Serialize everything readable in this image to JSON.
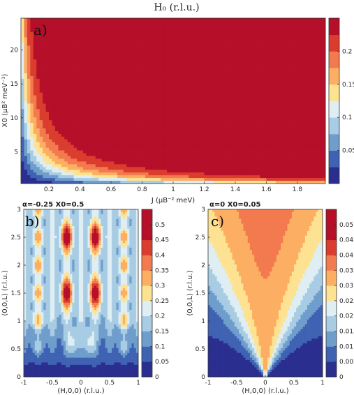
{
  "figure_title": "H₀ (r.l.u.)",
  "colorscale": [
    "#2a2f8f",
    "#3f62b3",
    "#6f9dcc",
    "#a8cce3",
    "#deeef3",
    "#fde292",
    "#fcae63",
    "#f27a4e",
    "#da3d2e",
    "#b50f2a"
  ],
  "chart_data": [
    {
      "type": "heatmap",
      "panel_label": "a)",
      "title": "",
      "xlabel": "J (μB⁻² meV)",
      "ylabel": "X0 (μB² meV⁻¹)",
      "xlim": [
        0.02,
        1.98
      ],
      "ylim": [
        0.3,
        24.7
      ],
      "xticks": [
        "0.2",
        "0.4",
        "0.6",
        "0.8",
        "1",
        "1.2",
        "1.4",
        "1.6",
        "1.8"
      ],
      "xtick_values": [
        0.2,
        0.4,
        0.6,
        0.8,
        1.0,
        1.2,
        1.4,
        1.6,
        1.8
      ],
      "yticks": [
        "5",
        "10",
        "15",
        "20"
      ],
      "ytick_values": [
        5,
        10,
        15,
        20
      ],
      "colorbar": {
        "ticks": [
          "0.05",
          "0.1",
          "0.15",
          "0.2"
        ],
        "tick_values": [
          0.05,
          0.1,
          0.15,
          0.2
        ],
        "levels": [
          0,
          0.025,
          0.05,
          0.075,
          0.1,
          0.125,
          0.15,
          0.175,
          0.2,
          0.225,
          0.25
        ]
      }
    },
    {
      "type": "heatmap",
      "panel_label": "b)",
      "title": "α=-0.25  X0=0.5",
      "xlabel": "(H,0,0) (r.l.u.)",
      "ylabel": "(0,0,L) (r.l.u.)",
      "xlim": [
        -1,
        1
      ],
      "ylim": [
        0,
        3
      ],
      "xticks": [
        "-1",
        "-0.5",
        "0",
        "0.5",
        "1"
      ],
      "xtick_values": [
        -1,
        -0.5,
        0,
        0.5,
        1
      ],
      "yticks": [
        "0",
        "0.5",
        "1",
        "1.5",
        "2",
        "2.5",
        "3"
      ],
      "ytick_values": [
        0,
        0.5,
        1,
        1.5,
        2,
        2.5,
        3
      ],
      "peaks": [
        {
          "h": -0.25,
          "l": 1.5,
          "value": 0.52
        },
        {
          "h": 0.25,
          "l": 1.5,
          "value": 0.52
        },
        {
          "h": -0.25,
          "l": 2.5,
          "value": 0.52
        },
        {
          "h": 0.25,
          "l": 2.5,
          "value": 0.52
        },
        {
          "h": -0.15,
          "l": 0.6,
          "value": 0.32
        },
        {
          "h": 0.15,
          "l": 0.6,
          "value": 0.32
        }
      ],
      "colorbar": {
        "ticks": [
          "0",
          "0.05",
          "0.1",
          "0.15",
          "0.2",
          "0.25",
          "0.3",
          "0.35",
          "0.4",
          "0.45",
          "0.5"
        ],
        "tick_values": [
          0,
          0.05,
          0.1,
          0.15,
          0.2,
          0.25,
          0.3,
          0.35,
          0.4,
          0.45,
          0.5
        ],
        "levels": [
          0,
          0.05,
          0.1,
          0.15,
          0.2,
          0.25,
          0.3,
          0.35,
          0.4,
          0.45,
          0.5,
          0.55
        ]
      }
    },
    {
      "type": "heatmap",
      "panel_label": "c)",
      "title": "α=0  X0=0.05",
      "xlabel": "(H,0,0) (r.l.u.)",
      "ylabel": "(0,0,L) (r.l.u.)",
      "xlim": [
        -1,
        1
      ],
      "ylim": [
        0,
        3
      ],
      "xticks": [
        "-1",
        "-0.5",
        "0",
        "0.5",
        "1"
      ],
      "xtick_values": [
        -1,
        -0.5,
        0,
        0.5,
        1
      ],
      "yticks": [
        "0",
        "0.5",
        "1",
        "1.5",
        "2",
        "2.5",
        "3"
      ],
      "ytick_values": [
        0,
        0.5,
        1,
        1.5,
        2,
        2.5,
        3
      ],
      "colorbar": {
        "ticks": [
          "0",
          "0.005",
          "0.01",
          "0.015",
          "0.02",
          "0.025",
          "0.03",
          "0.035",
          "0.04",
          "0.045",
          "0.05"
        ],
        "tick_values": [
          0,
          0.005,
          0.01,
          0.015,
          0.02,
          0.025,
          0.03,
          0.035,
          0.04,
          0.045,
          0.05
        ],
        "levels": [
          0,
          0.005,
          0.01,
          0.015,
          0.02,
          0.025,
          0.03,
          0.035,
          0.04,
          0.045,
          0.05,
          0.055
        ]
      }
    }
  ]
}
